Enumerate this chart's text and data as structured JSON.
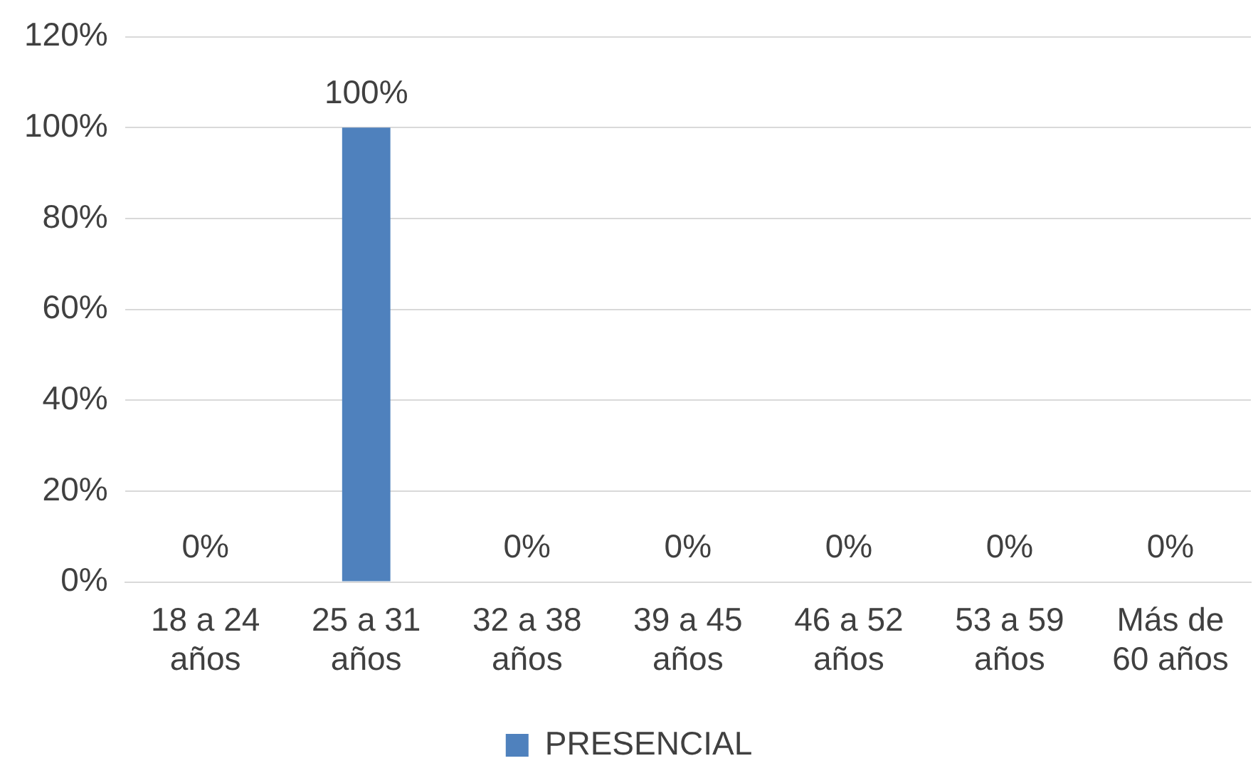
{
  "chart_data": {
    "type": "bar",
    "categories": [
      "18 a 24 años",
      "25 a 31 años",
      "32 a 38 años",
      "39 a 45 años",
      "46 a 52 años",
      "53 a 59 años",
      "Más de 60 años"
    ],
    "series": [
      {
        "name": "PRESENCIAL",
        "color": "#4f81bd",
        "values": [
          0,
          100,
          0,
          0,
          0,
          0,
          0
        ],
        "value_labels": [
          "0%",
          "100%",
          "0%",
          "0%",
          "0%",
          "0%",
          "0%"
        ]
      }
    ],
    "ylim": [
      0,
      120
    ],
    "yticks": [
      {
        "value": 0,
        "label": "0%"
      },
      {
        "value": 20,
        "label": "20%"
      },
      {
        "value": 40,
        "label": "40%"
      },
      {
        "value": 60,
        "label": "60%"
      },
      {
        "value": 80,
        "label": "80%"
      },
      {
        "value": 100,
        "label": "100%"
      },
      {
        "value": 120,
        "label": "120%"
      }
    ],
    "grid": "y",
    "legend": "bottom"
  }
}
